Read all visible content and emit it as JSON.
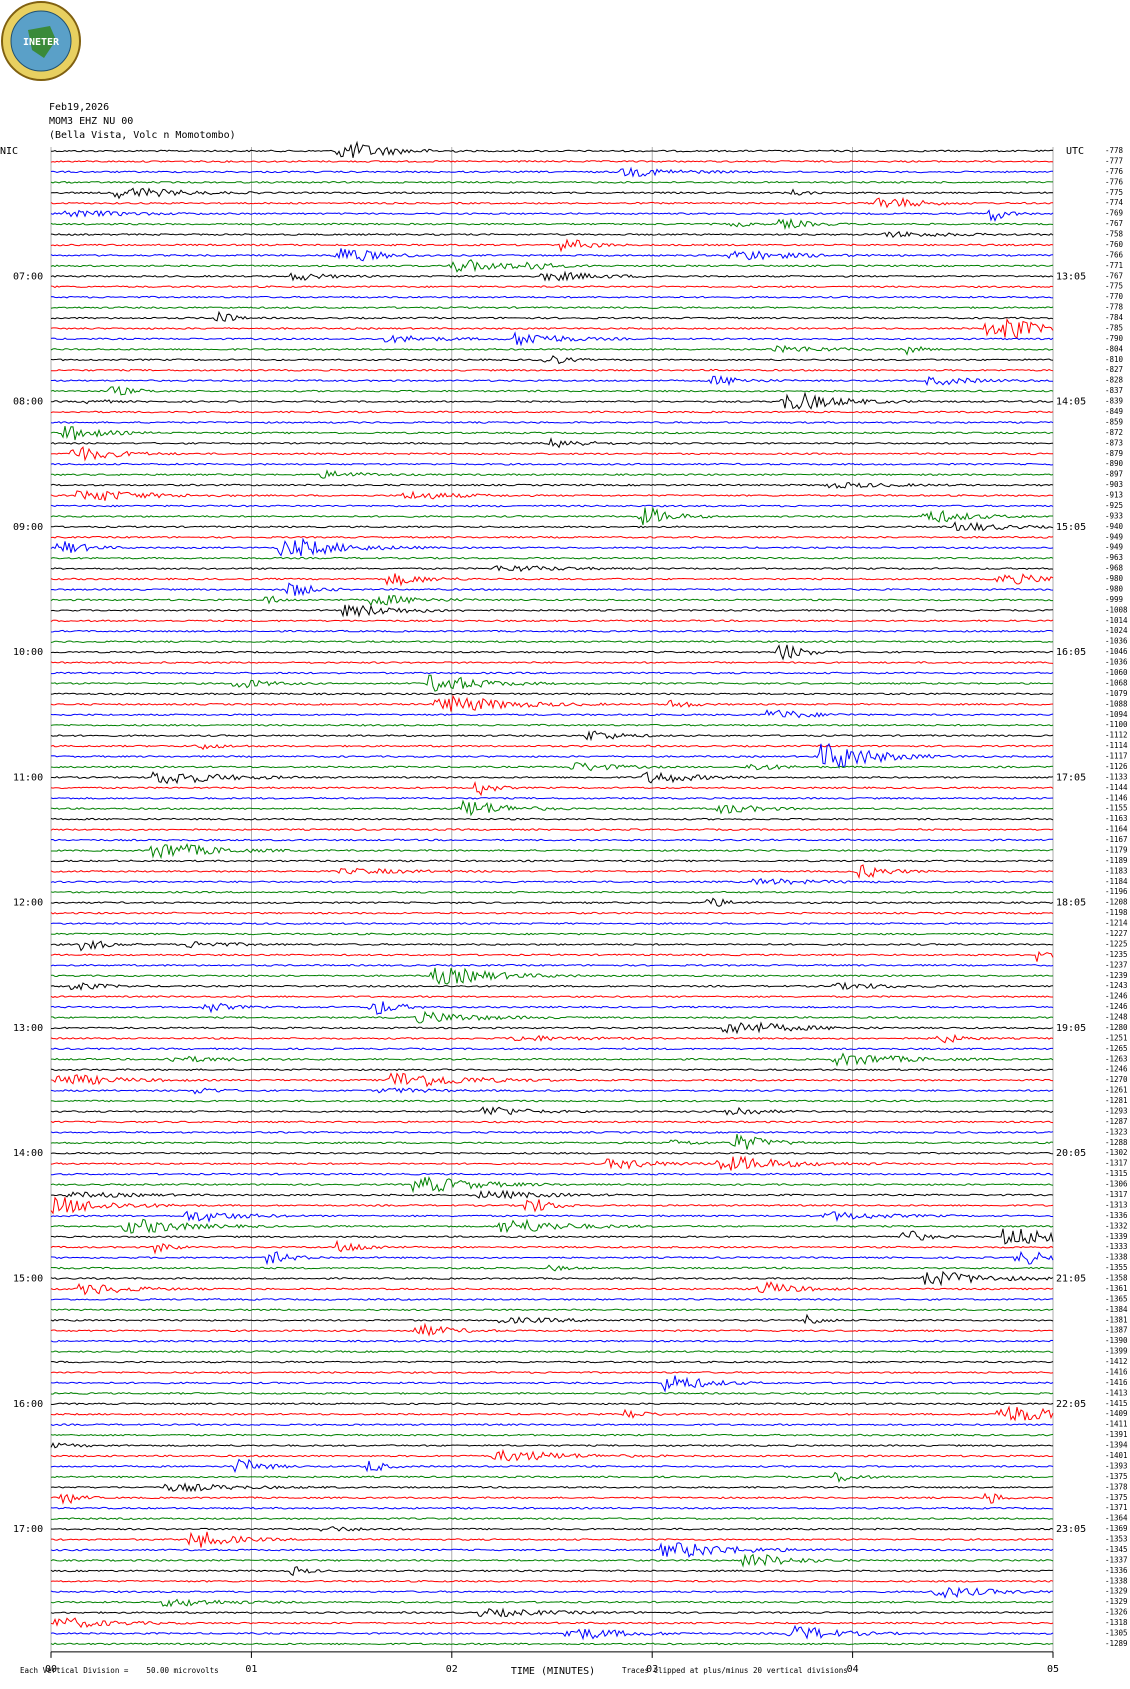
{
  "logo": "INETER",
  "header": {
    "date": "Feb19,2026",
    "station": "MOM3 EHZ NU 00",
    "location": "(Bella Vista, Volc n Momotombo)"
  },
  "left_zone": "NIC",
  "right_zone": "UTC",
  "left_times": [
    "07:00",
    "08:00",
    "09:00",
    "10:00",
    "11:00",
    "12:00",
    "13:00",
    "14:00",
    "15:00",
    "16:00",
    "17:00"
  ],
  "right_times": [
    "13:05",
    "14:05",
    "15:05",
    "16:05",
    "17:05",
    "18:05",
    "19:05",
    "20:05",
    "21:05",
    "22:05",
    "23:05"
  ],
  "offsets": [
    "-778",
    "-777",
    "-776",
    "-776",
    "-775",
    "-774",
    "-769",
    "-767",
    "-758",
    "-760",
    "-766",
    "-771",
    "-767",
    "-775",
    "-770",
    "-778",
    "-784",
    "-785",
    "-790",
    "-804",
    "-810",
    "-827",
    "-828",
    "-837",
    "-839",
    "-849",
    "-859",
    "-872",
    "-873",
    "-879",
    "-890",
    "-897",
    "-903",
    "-913",
    "-925",
    "-933",
    "-940",
    "-949",
    "-949",
    "-963",
    "-968",
    "-980",
    "-980",
    "-999",
    "-1008",
    "-1014",
    "-1024",
    "-1036",
    "-1046",
    "-1036",
    "-1060",
    "-1068",
    "-1079",
    "-1088",
    "-1094",
    "-1100",
    "-1112",
    "-1114",
    "-1117",
    "-1126",
    "-1133",
    "-1144",
    "-1146",
    "-1155",
    "-1163",
    "-1164",
    "-1167",
    "-1179",
    "-1189",
    "-1183",
    "-1184",
    "-1196",
    "-1208",
    "-1198",
    "-1214",
    "-1227",
    "-1225",
    "-1235",
    "-1237",
    "-1239",
    "-1243",
    "-1246",
    "-1246",
    "-1248",
    "-1280",
    "-1251",
    "-1265",
    "-1263",
    "-1246",
    "-1270",
    "-1261",
    "-1281",
    "-1293",
    "-1287",
    "-1323",
    "-1288",
    "-1302",
    "-1317",
    "-1315",
    "-1306",
    "-1317",
    "-1313",
    "-1336",
    "-1332",
    "-1339",
    "-1333",
    "-1338",
    "-1355",
    "-1358",
    "-1361",
    "-1365",
    "-1384",
    "-1381",
    "-1387",
    "-1390",
    "-1399",
    "-1412",
    "-1416",
    "-1416",
    "-1413",
    "-1415",
    "-1409",
    "-1411",
    "-1391",
    "-1394",
    "-1401",
    "-1393",
    "-1375",
    "-1378",
    "-1375",
    "-1371",
    "-1364",
    "-1369",
    "-1353",
    "-1345",
    "-1337",
    "-1336",
    "-1338",
    "-1329",
    "-1329",
    "-1326",
    "-1318",
    "-1305",
    "-1289"
  ],
  "x_axis": {
    "ticks": [
      "00",
      "01",
      "02",
      "03",
      "04",
      "05"
    ],
    "label": "TIME (MINUTES)"
  },
  "footer": {
    "division": "Each Vertical Division =    50.00 microvolts",
    "clip": "Traces clipped at plus/minus 20 vertical divisions"
  }
}
